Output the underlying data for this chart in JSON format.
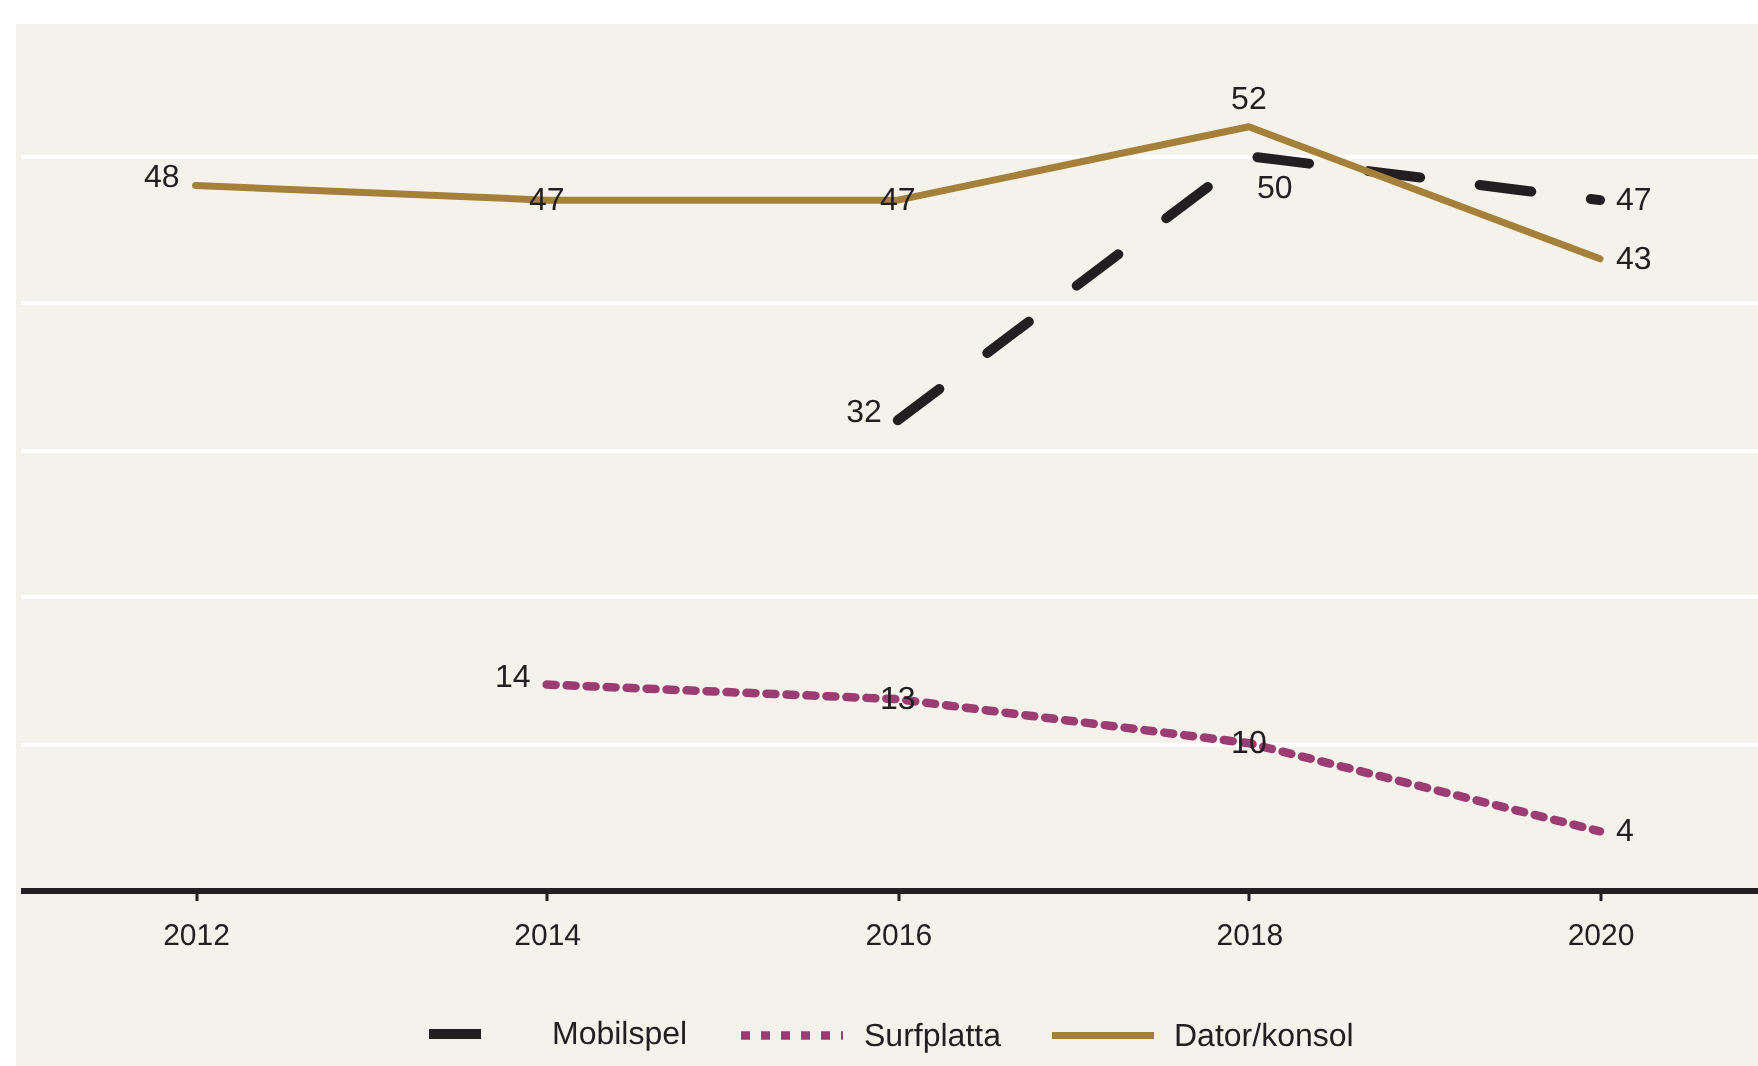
{
  "chart_data": {
    "type": "line",
    "xlim": [
      2011,
      2020.9
    ],
    "xticks": [
      2012,
      2014,
      2016,
      2018,
      2020
    ],
    "ylim": [
      0,
      59
    ],
    "yticks": [
      {
        "value": 10,
        "label": null
      },
      {
        "value": 20,
        "label": null
      },
      {
        "value": 30,
        "label": null
      },
      {
        "value": 40,
        "label": null
      },
      {
        "value": 50,
        "label": null
      }
    ],
    "series": [
      {
        "name": "Mobilspel",
        "color": "#231f20",
        "line_style": "dashed",
        "x": [
          2016,
          2018,
          2020
        ],
        "values": [
          32,
          50,
          47
        ]
      },
      {
        "name": "Surfplatta",
        "color": "#9b3d72",
        "line_style": "dotted",
        "x": [
          2014,
          2016,
          2018,
          2020
        ],
        "values": [
          14,
          13,
          10,
          4
        ]
      },
      {
        "name": "Dator/konsol",
        "color": "#a5803a",
        "line_style": "solid",
        "x": [
          2012,
          2014,
          2016,
          2018,
          2020
        ],
        "values": [
          48,
          47,
          47,
          52,
          43
        ]
      }
    ],
    "data_labels": true,
    "grid": "y",
    "tick_labels": "x",
    "legend": "bottom"
  }
}
